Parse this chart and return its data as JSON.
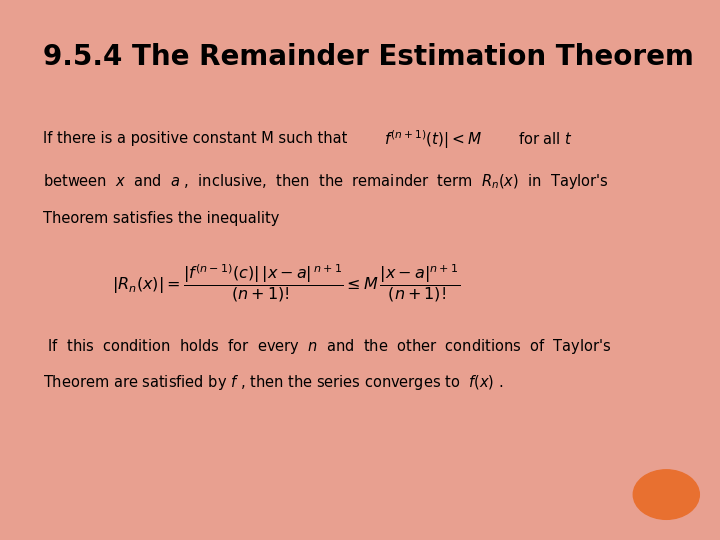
{
  "title": "9.5.4 The Remainder Estimation Theorem",
  "title_fontsize": 20,
  "bg_color": "#ffffff",
  "border_color": "#e8a090",
  "orange_color": "#e87030",
  "text_fontsize": 10.5,
  "formula_fontsize": 11.5
}
